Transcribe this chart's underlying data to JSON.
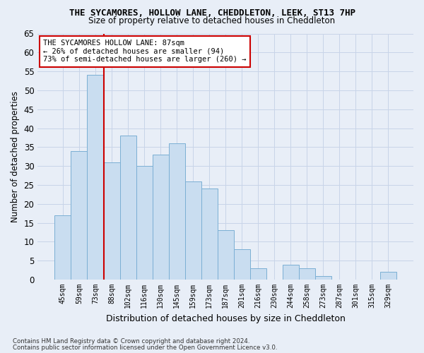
{
  "title": "THE SYCAMORES, HOLLOW LANE, CHEDDLETON, LEEK, ST13 7HP",
  "subtitle": "Size of property relative to detached houses in Cheddleton",
  "xlabel": "Distribution of detached houses by size in Cheddleton",
  "ylabel": "Number of detached properties",
  "categories": [
    "45sqm",
    "59sqm",
    "73sqm",
    "88sqm",
    "102sqm",
    "116sqm",
    "130sqm",
    "145sqm",
    "159sqm",
    "173sqm",
    "187sqm",
    "201sqm",
    "216sqm",
    "230sqm",
    "244sqm",
    "258sqm",
    "273sqm",
    "287sqm",
    "301sqm",
    "315sqm",
    "329sqm"
  ],
  "values": [
    17,
    34,
    54,
    31,
    38,
    30,
    33,
    36,
    26,
    24,
    13,
    8,
    3,
    0,
    4,
    3,
    1,
    0,
    0,
    0,
    2
  ],
  "bar_color": "#c9ddf0",
  "bar_edge_color": "#7bafd4",
  "grid_color": "#c8d4e8",
  "bg_color": "#e8eef7",
  "vline_color": "#cc0000",
  "annotation_text": "THE SYCAMORES HOLLOW LANE: 87sqm\n← 26% of detached houses are smaller (94)\n73% of semi-detached houses are larger (260) →",
  "annotation_box_color": "white",
  "annotation_box_edge": "#cc0000",
  "ylim": [
    0,
    65
  ],
  "yticks": [
    0,
    5,
    10,
    15,
    20,
    25,
    30,
    35,
    40,
    45,
    50,
    55,
    60,
    65
  ],
  "footnote1": "Contains HM Land Registry data © Crown copyright and database right 2024.",
  "footnote2": "Contains public sector information licensed under the Open Government Licence v3.0."
}
